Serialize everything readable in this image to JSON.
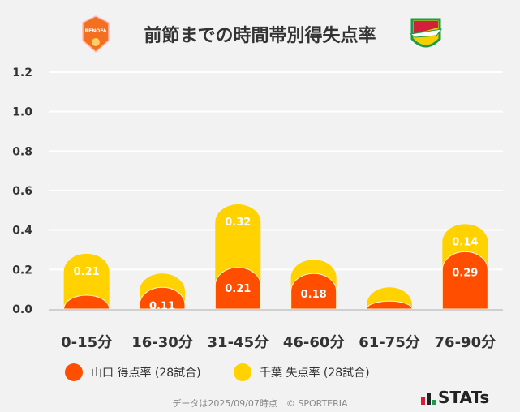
{
  "chart_data": {
    "type": "bar",
    "stacked": true,
    "title": "前節までの時間帯別得失点率",
    "categories": [
      "0-15分",
      "16-30分",
      "31-45分",
      "46-60分",
      "61-75分",
      "76-90分"
    ],
    "series": [
      {
        "name": "山口 得点率 (28試合)",
        "color": "#ff4e00",
        "values": [
          0.07,
          0.11,
          0.21,
          0.18,
          0.04,
          0.29
        ],
        "labels": [
          "",
          "0.11",
          "0.21",
          "0.18",
          "",
          "0.29"
        ]
      },
      {
        "name": "千葉 失点率 (28試合)",
        "color": "#ffd200",
        "values": [
          0.21,
          0.07,
          0.32,
          0.07,
          0.07,
          0.14
        ],
        "labels": [
          "0.21",
          "",
          "0.32",
          "",
          "",
          "0.14"
        ]
      }
    ],
    "ylim": [
      0,
      1.2
    ],
    "yticks": [
      "0.0",
      "0.2",
      "0.4",
      "0.6",
      "0.8",
      "1.0",
      "1.2"
    ],
    "grid": true,
    "legend": "bottom"
  },
  "logos": {
    "left": "RENOFA",
    "right": "JEF"
  },
  "footer": "データは2025/09/07時点　© SPORTERIA",
  "brand": "STATs"
}
